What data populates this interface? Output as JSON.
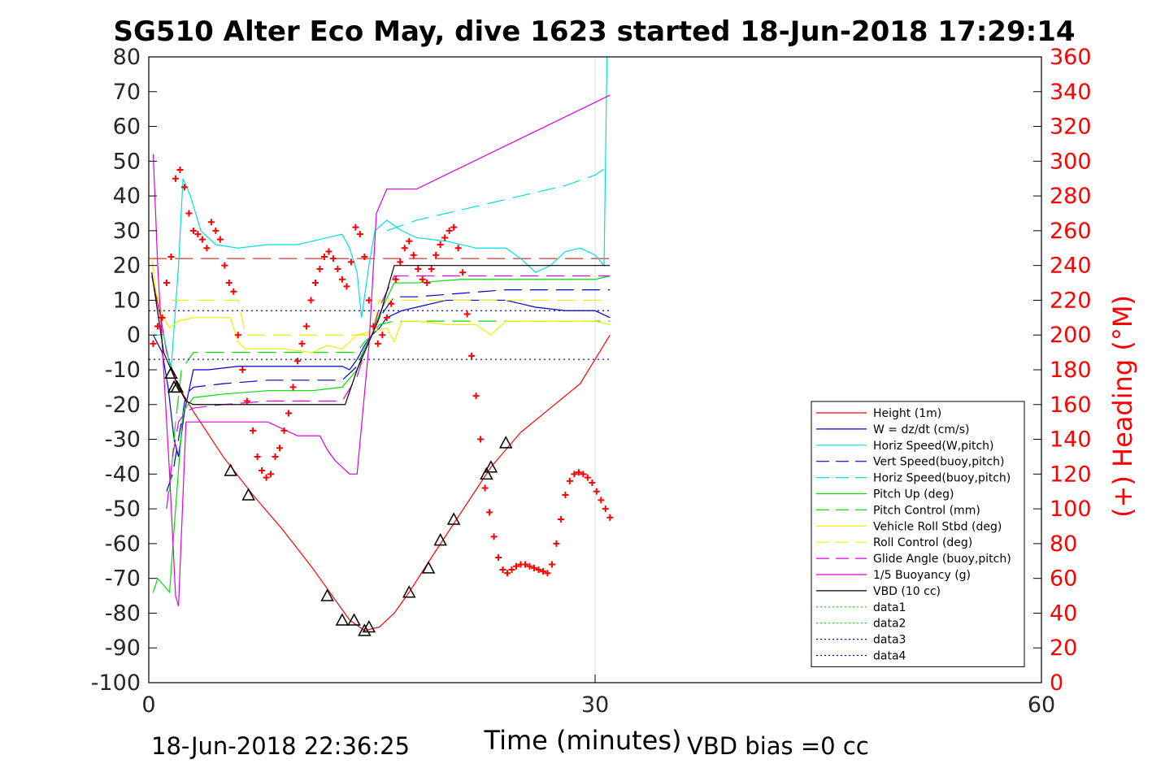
{
  "chart_data": {
    "type": "line",
    "title": "SG510 Alter Eco May, dive 1623 started 18-Jun-2018 17:29:14",
    "xlabel": "Time (minutes)",
    "ylabel": "",
    "y2label": "(+) Heading (°M)",
    "xlim": [
      0,
      60
    ],
    "ylim": [
      -100,
      80
    ],
    "y2lim": [
      0,
      360
    ],
    "x_ticks": [
      "0",
      "30",
      "60"
    ],
    "y_ticks": [
      "80",
      "70",
      "60",
      "50",
      "40",
      "30",
      "20",
      "10",
      "0",
      "-10",
      "-20",
      "-30",
      "-40",
      "-50",
      "-60",
      "-70",
      "-80",
      "-90",
      "-100"
    ],
    "y2_ticks": [
      "360",
      "340",
      "320",
      "300",
      "280",
      "260",
      "240",
      "220",
      "200",
      "180",
      "160",
      "140",
      "120",
      "100",
      "80",
      "60",
      "40",
      "20",
      "0"
    ],
    "grid": "x-only",
    "footer_left": "18-Jun-2018 22:36:25",
    "footer_right": "VBD bias =0 cc",
    "legend_position": "lower-right",
    "legend": [
      {
        "label": "Height (1m)",
        "color": "#ff0000",
        "dash": "solid"
      },
      {
        "label": "W = dz/dt (cm/s)",
        "color": "#0000cc",
        "dash": "solid"
      },
      {
        "label": "Horiz Speed(W,pitch)",
        "color": "#00e0e0",
        "dash": "solid"
      },
      {
        "label": "Vert Speed(buoy,pitch)",
        "color": "#0000cc",
        "dash": "dashed"
      },
      {
        "label": "Horiz Speed(buoy,pitch)",
        "color": "#00e0e0",
        "dash": "dashed"
      },
      {
        "label": "Pitch Up (deg)",
        "color": "#00dd00",
        "dash": "solid"
      },
      {
        "label": "Pitch Control (mm)",
        "color": "#00dd00",
        "dash": "dashed"
      },
      {
        "label": "Vehicle Roll Stbd (deg)",
        "color": "#eeee00",
        "dash": "solid"
      },
      {
        "label": "Roll Control (deg)",
        "color": "#eeee00",
        "dash": "dashed"
      },
      {
        "label": "Glide Angle (buoy,pitch)",
        "color": "#dd00dd",
        "dash": "dashed"
      },
      {
        "label": "1/5 Buoyancy (g)",
        "color": "#dd00dd",
        "dash": "solid"
      },
      {
        "label": "VBD (10 cc)",
        "color": "#000000",
        "dash": "solid"
      },
      {
        "label": "data1",
        "color": "#00dd00",
        "dash": "dotted"
      },
      {
        "label": "data2",
        "color": "#00dd00",
        "dash": "dotted"
      },
      {
        "label": "data3",
        "color": "#0000cc",
        "dash": "dotted"
      },
      {
        "label": "data4",
        "color": "#0000cc",
        "dash": "dotted"
      }
    ],
    "series": [
      {
        "name": "Height (1m)",
        "color": "#ff0000",
        "dash": "solid",
        "x": [
          0.2,
          0.8,
          1.2,
          1.8,
          2.3,
          3,
          5,
          7,
          9,
          11,
          12.5,
          13.5,
          14.5,
          15.5,
          16.5,
          17.5,
          19,
          21,
          23,
          25,
          27,
          29,
          30,
          31
        ],
        "y": [
          17,
          5,
          -5,
          -13,
          -17,
          -22,
          -35,
          -46,
          -56,
          -67,
          -76,
          -82,
          -85,
          -84,
          -80,
          -74,
          -64,
          -51,
          -38,
          -28,
          -21,
          -14,
          -7,
          0
        ]
      },
      {
        "name": "W = dz/dt (cm/s)",
        "color": "#0000cc",
        "dash": "solid",
        "x": [
          0.3,
          0.9,
          1.3,
          1.7,
          2,
          2.4,
          3,
          4,
          6,
          8,
          10,
          12,
          13,
          13.5,
          14,
          14.5,
          15,
          15.5,
          16,
          17,
          18,
          20,
          22,
          24,
          26,
          28,
          30,
          31
        ],
        "y": [
          0,
          -5,
          -15,
          -30,
          -35,
          -22,
          -10,
          -10,
          -9,
          -9,
          -9,
          -9,
          -9,
          -10,
          -7,
          -3,
          0,
          2,
          5,
          7,
          8,
          10,
          10,
          10,
          8,
          7,
          7,
          5
        ]
      },
      {
        "name": "Horiz Speed(W,pitch)",
        "color": "#00e0e0",
        "dash": "solid",
        "x": [
          0.3,
          1,
          1.5,
          2,
          2.3,
          2.8,
          3.5,
          4.5,
          6,
          8,
          10,
          12,
          13,
          13.5,
          14,
          14.3,
          14.8,
          15.2,
          16,
          17,
          18,
          20,
          22,
          24,
          25,
          26,
          27,
          28,
          29,
          30,
          30.6,
          30.8
        ],
        "y": [
          0,
          0,
          -10,
          20,
          45,
          40,
          30,
          26,
          25,
          26,
          26,
          28,
          29,
          25,
          18,
          5,
          20,
          30,
          33,
          30,
          28,
          27,
          25,
          25,
          22,
          18,
          20,
          24,
          25,
          23,
          20,
          80
        ]
      },
      {
        "name": "Vert Speed(buoy,pitch)",
        "color": "#0000cc",
        "dash": "dashed",
        "x": [
          1.2,
          1.6,
          2,
          2.5,
          3,
          5,
          8,
          11,
          13,
          14,
          14.5,
          15,
          15.5,
          16.5,
          18,
          21,
          24,
          27,
          30,
          31
        ],
        "y": [
          -45,
          -40,
          -30,
          -17,
          -15,
          -14,
          -13,
          -13,
          -13,
          -9,
          -4,
          0,
          5,
          11,
          11,
          12,
          13,
          13,
          13,
          13
        ]
      },
      {
        "name": "Horiz Speed(buoy,pitch)",
        "color": "#00e0e0",
        "dash": "dashed",
        "x": [
          16,
          18,
          20,
          22,
          24,
          26,
          28,
          30,
          31
        ],
        "y": [
          30,
          33,
          35,
          37,
          39,
          41,
          43,
          46,
          49
        ]
      },
      {
        "name": "Pitch Up (deg)",
        "color": "#00dd00",
        "dash": "solid",
        "x": [
          0.3,
          0.6,
          1,
          1.4,
          1.8,
          2.3,
          3,
          5,
          8,
          11,
          13,
          14,
          14.5,
          15,
          15.5,
          16.5,
          18,
          21,
          24,
          27,
          30,
          31
        ],
        "y": [
          -74,
          -70,
          -72,
          -74,
          -50,
          -22,
          -18,
          -17,
          -16,
          -16,
          -15,
          -10,
          -4,
          0,
          6,
          15,
          15,
          16,
          16,
          16,
          16,
          17
        ]
      },
      {
        "name": "Pitch Control (mm)",
        "color": "#00dd00",
        "dash": "dashed",
        "x": [
          1.4,
          1.8,
          2.2,
          3,
          5,
          8,
          11,
          13,
          14,
          14.5,
          15,
          15.5,
          16.5,
          18,
          21,
          24,
          27,
          30,
          31
        ],
        "y": [
          -45,
          -25,
          -10,
          -5,
          -5,
          -5,
          -5,
          -5,
          -5,
          -2,
          0,
          3,
          4,
          4,
          4,
          4,
          4,
          4,
          4
        ]
      },
      {
        "name": "Vehicle Roll Stbd (deg)",
        "color": "#eeee00",
        "dash": "solid",
        "x": [
          0.2,
          0.5,
          1,
          1.4,
          2,
          3,
          4,
          5.5,
          6,
          6.5,
          7,
          9,
          11,
          12,
          13,
          14,
          15,
          16,
          16.5,
          17,
          18,
          20,
          22,
          23,
          24,
          25,
          27,
          30,
          31
        ],
        "y": [
          22,
          12,
          5,
          2,
          4,
          5,
          5,
          5,
          -2,
          -4,
          -4,
          -4,
          -5,
          -3,
          -4,
          0,
          1,
          2,
          -2,
          4,
          4,
          3,
          3,
          0,
          4,
          4,
          4,
          4,
          3
        ]
      },
      {
        "name": "Roll Control (deg)",
        "color": "#eeee00",
        "dash": "dashed",
        "x": [
          1.5,
          2,
          6,
          6.5,
          15,
          15.5,
          24,
          24.5,
          31
        ],
        "y": [
          10,
          10,
          10,
          0,
          0,
          10,
          10,
          10,
          10
        ]
      },
      {
        "name": "Glide Angle (buoy,pitch)",
        "color": "#dd00dd",
        "dash": "dashed",
        "x": [
          1.2,
          1.6,
          2,
          2.5,
          3,
          5,
          8,
          11,
          13,
          14,
          14.5,
          15,
          15.5,
          16.5,
          18,
          21,
          24,
          27,
          30,
          31
        ],
        "y": [
          -50,
          -35,
          -25,
          -22,
          -21,
          -20,
          -19,
          -19,
          -19,
          -12,
          -5,
          0,
          8,
          17,
          17,
          17,
          17,
          17,
          17,
          17
        ]
      },
      {
        "name": "1/5 Buoyancy (g)",
        "color": "#dd00dd",
        "dash": "solid",
        "x": [
          0.3,
          0.6,
          1,
          1.4,
          1.8,
          2,
          2.5,
          3,
          5,
          8,
          10,
          11,
          11.5,
          12,
          12.5,
          13,
          13.5,
          14,
          14.8,
          15.3,
          16,
          18,
          31
        ],
        "y": [
          52,
          20,
          -10,
          -40,
          -75,
          -78,
          -25,
          -25,
          -25,
          -25,
          -29,
          -29,
          -29,
          -33,
          -36,
          -38,
          -40,
          -40,
          -3,
          35,
          42,
          42,
          69
        ]
      },
      {
        "name": "VBD (10 cc)",
        "color": "#000000",
        "dash": "solid",
        "x": [
          0.2,
          1,
          2,
          2.5,
          3,
          5,
          8,
          11,
          13.2,
          14,
          15,
          15.5,
          16.5,
          18,
          21,
          24,
          27,
          30,
          31
        ],
        "y": [
          18,
          -5,
          -15,
          -19,
          -20,
          -20,
          -20,
          -20,
          -20,
          -10,
          0,
          5,
          20,
          20,
          20,
          20,
          20,
          20,
          20
        ]
      },
      {
        "name": "data1",
        "color": "#00dd00",
        "dash": "dotted",
        "x": [],
        "y": []
      },
      {
        "name": "data2",
        "color": "#00dd00",
        "dash": "dotted",
        "x": [],
        "y": []
      },
      {
        "name": "data3",
        "color": "#0000cc",
        "dash": "dotted",
        "x": [
          0,
          31
        ],
        "y": [
          7,
          7
        ]
      },
      {
        "name": "data4",
        "color": "#0000cc",
        "dash": "dotted",
        "x": [
          0,
          31
        ],
        "y": [
          -7,
          -7
        ]
      }
    ],
    "reference_lines": [
      {
        "color": "#cc0000",
        "dash": "dashed",
        "x": [
          0,
          31
        ],
        "y": [
          22,
          22
        ]
      }
    ],
    "heading_points": {
      "axis": "right",
      "color": "#ff0000",
      "marker": "+",
      "x": [
        0.3,
        0.6,
        0.9,
        1.2,
        1.5,
        1.8,
        2.1,
        2.4,
        2.7,
        3.0,
        3.3,
        3.6,
        3.9,
        4.2,
        4.5,
        4.8,
        5.1,
        5.4,
        5.7,
        6.0,
        6.3,
        6.6,
        7.0,
        7.3,
        7.6,
        7.9,
        8.2,
        8.5,
        8.8,
        9.1,
        9.4,
        9.7,
        10.0,
        10.3,
        10.6,
        10.9,
        11.2,
        11.5,
        11.8,
        12.1,
        12.4,
        12.7,
        13.0,
        13.3,
        13.6,
        13.9,
        14.2,
        14.5,
        14.8,
        15.1,
        15.4,
        15.7,
        16.0,
        16.3,
        16.6,
        16.9,
        17.2,
        17.5,
        17.8,
        18.1,
        18.4,
        18.7,
        19.0,
        19.3,
        19.6,
        19.9,
        20.2,
        20.5,
        20.8,
        21.1,
        21.4,
        21.7,
        22.0,
        22.3,
        22.6,
        22.9,
        23.2,
        23.5,
        23.8,
        24.1,
        24.4,
        24.7,
        25.0,
        25.3,
        25.6,
        25.9,
        26.2,
        26.5,
        26.8,
        27.1,
        27.4,
        27.7,
        28.0,
        28.3,
        28.6,
        28.9,
        29.2,
        29.5,
        29.8,
        30.1,
        30.4,
        30.7,
        31.0
      ],
      "y": [
        195,
        205,
        210,
        230,
        245,
        290,
        295,
        285,
        270,
        260,
        258,
        255,
        250,
        265,
        260,
        255,
        240,
        230,
        225,
        200,
        180,
        162,
        145,
        130,
        122,
        118,
        120,
        130,
        135,
        145,
        155,
        170,
        185,
        195,
        205,
        220,
        230,
        238,
        245,
        248,
        244,
        238,
        232,
        228,
        242,
        262,
        258,
        245,
        220,
        205,
        195,
        200,
        210,
        218,
        232,
        242,
        250,
        254,
        246,
        238,
        232,
        230,
        238,
        246,
        252,
        256,
        260,
        262,
        250,
        236,
        212,
        188,
        165,
        140,
        112,
        98,
        84,
        72,
        65,
        63,
        65,
        67,
        68,
        68,
        67,
        66,
        65,
        64,
        63,
        68,
        80,
        94,
        108,
        116,
        120,
        121,
        120,
        118,
        115,
        110,
        105,
        100,
        95
      ]
    },
    "triangle_markers": {
      "color": "#000000",
      "marker": "triangle",
      "x": [
        1.5,
        1.7,
        1.9,
        5.5,
        6.7,
        12.0,
        13.0,
        13.8,
        14.5,
        14.8,
        17.5,
        18.8,
        19.6,
        20.5,
        22.7,
        23.0,
        24.0
      ],
      "y": [
        -11,
        -15,
        -15,
        -39,
        -46,
        -75,
        -82,
        -82,
        -85,
        -84,
        -74,
        -67,
        -59,
        -53,
        -40,
        -38,
        -31
      ]
    }
  }
}
